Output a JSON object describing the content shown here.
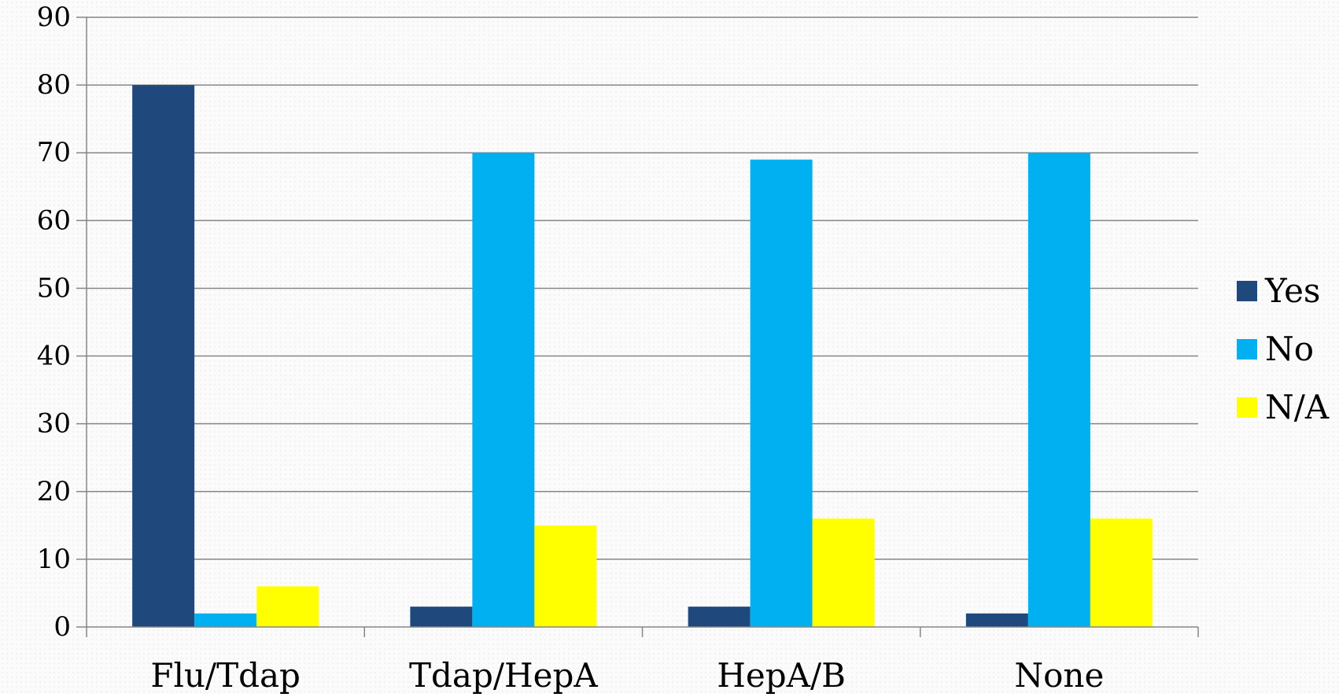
{
  "chart_data": {
    "type": "bar",
    "title": "",
    "xlabel": "",
    "ylabel": "",
    "categories": [
      "Flu/Tdap",
      "Tdap/HepA",
      "HepA/B",
      "None"
    ],
    "series": [
      {
        "name": "Yes",
        "color": "#1f497d",
        "values": [
          80,
          3,
          3,
          2
        ]
      },
      {
        "name": "No",
        "color": "#00b0f0",
        "values": [
          2,
          70,
          69,
          70
        ]
      },
      {
        "name": "N/A",
        "color": "#ffff00",
        "values": [
          6,
          15,
          16,
          16
        ]
      }
    ],
    "ylim": [
      0,
      90
    ],
    "yticks": [
      "0",
      "10",
      "20",
      "30",
      "40",
      "50",
      "60",
      "70",
      "80",
      "90"
    ],
    "grid": true,
    "legend_position": "right"
  }
}
